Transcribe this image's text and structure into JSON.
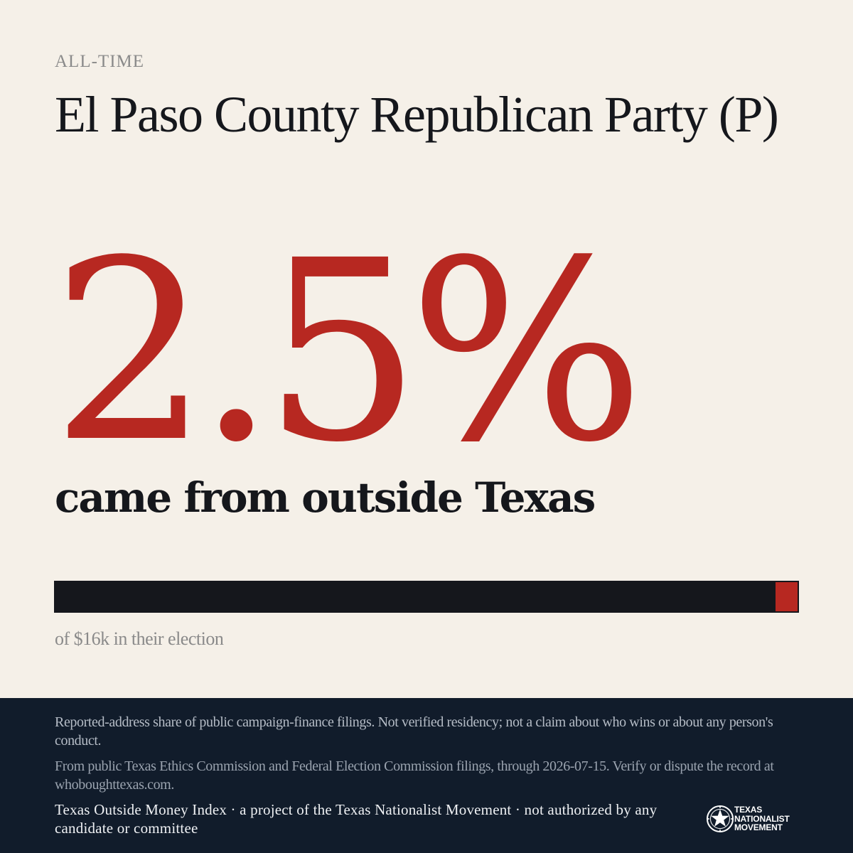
{
  "header": {
    "kicker": "ALL-TIME",
    "title": "El Paso County Republican Party (P)"
  },
  "headline": {
    "percent_text": "2.5%",
    "subline": "came from outside Texas"
  },
  "share_bar": {
    "outside_share_fraction": 0.025,
    "caption": "of $16k in their election",
    "colors": {
      "inside": "#15171c",
      "outside": "#b72821"
    }
  },
  "footer": {
    "disclaimer": "Reported-address share of public campaign-finance filings. Not verified residency; not a claim about who wins or about any person's conduct.",
    "source": "From public Texas Ethics Commission and Federal Election Commission filings, through 2026-07-15. Verify or dispute the record at whoboughttexas.com.",
    "credit": "Texas Outside Money Index · a project of the Texas Nationalist Movement · not authorized by any candidate or committee",
    "logo": {
      "icon": "star-seal-icon",
      "line1": "TEXAS",
      "line2": "NATIONALIST",
      "line3": "MOVEMENT"
    }
  },
  "colors": {
    "background": "#f5f0e8",
    "accent": "#b72821",
    "ink": "#15171c",
    "footer_bg": "#111c2b"
  }
}
